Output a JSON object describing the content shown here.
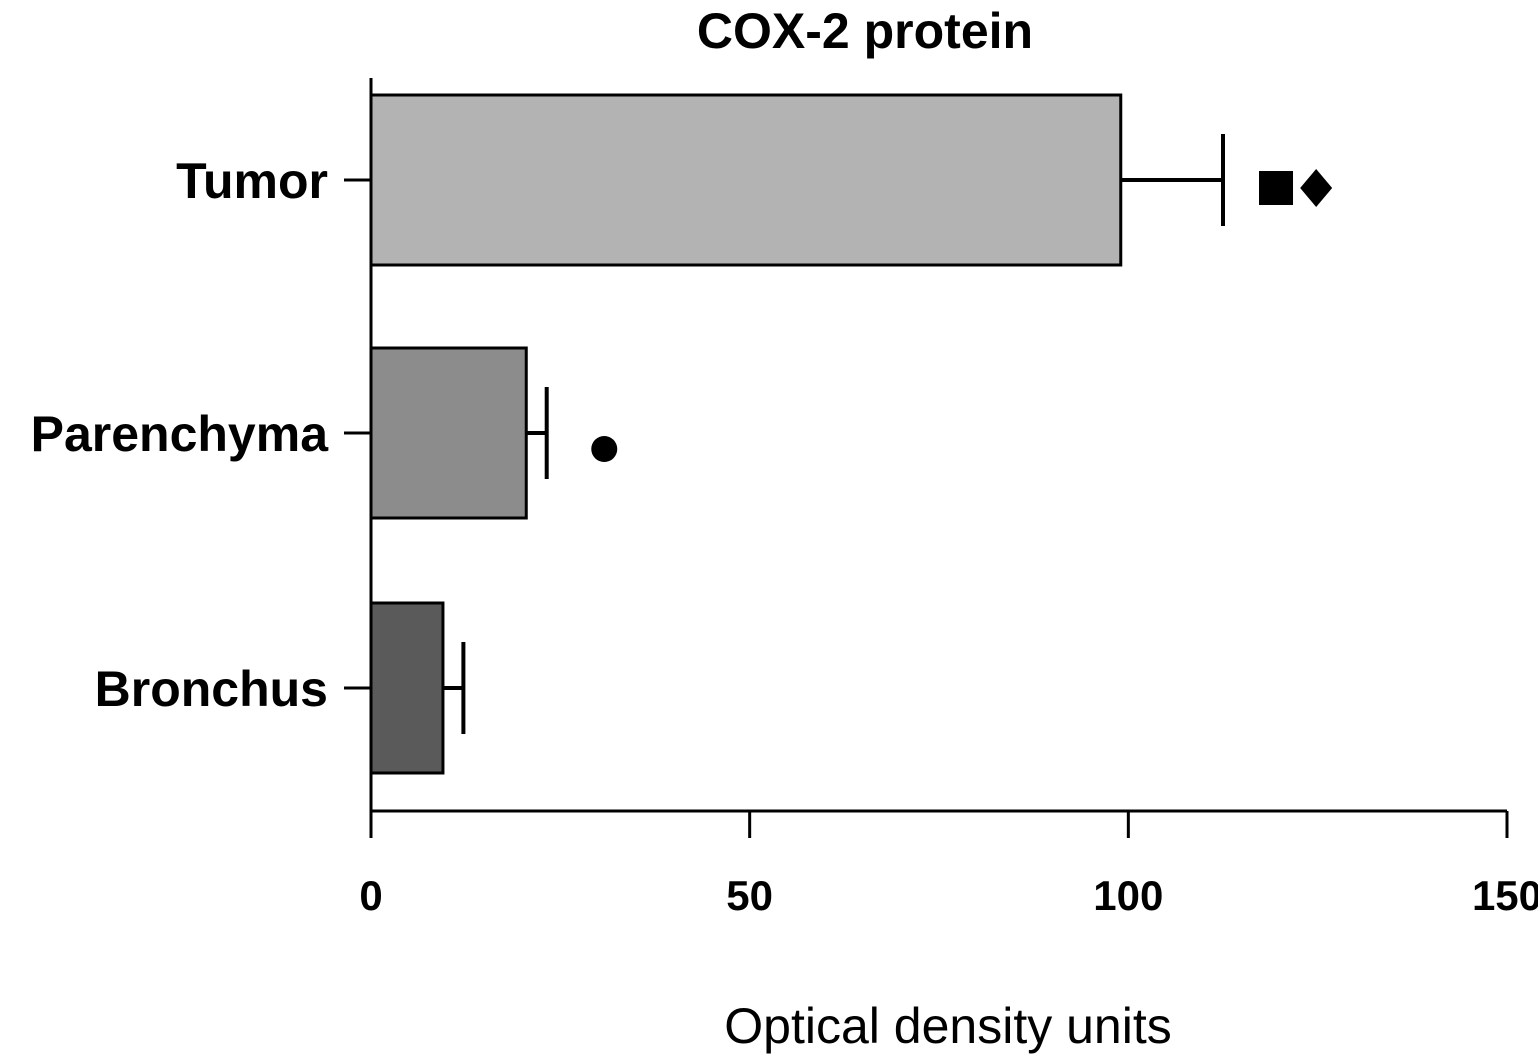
{
  "chart_data": {
    "type": "bar",
    "orientation": "horizontal",
    "title": "COX-2 protein",
    "xlabel": "Optical density units",
    "ylabel": "",
    "xlim": [
      0,
      150
    ],
    "xticks": [
      0,
      50,
      100,
      150
    ],
    "xtick_labels": [
      "0",
      "50",
      "100",
      "150"
    ],
    "grid": false,
    "legend": "none",
    "categories": [
      "Tumor",
      "Parenchyma",
      "Bronchus"
    ],
    "values": [
      99,
      20.5,
      9.5
    ],
    "error": [
      13.5,
      2.7,
      2.7
    ],
    "bar_colors": [
      "#b3b3b3",
      "#8c8c8c",
      "#5a5a5a"
    ],
    "significance_markers": [
      {
        "category": "Tumor",
        "symbols": [
          "square",
          "diamond"
        ],
        "x": [
          119.5,
          124.8
        ]
      },
      {
        "category": "Parenchyma",
        "symbols": [
          "circle"
        ],
        "x": [
          30.8
        ]
      }
    ]
  }
}
